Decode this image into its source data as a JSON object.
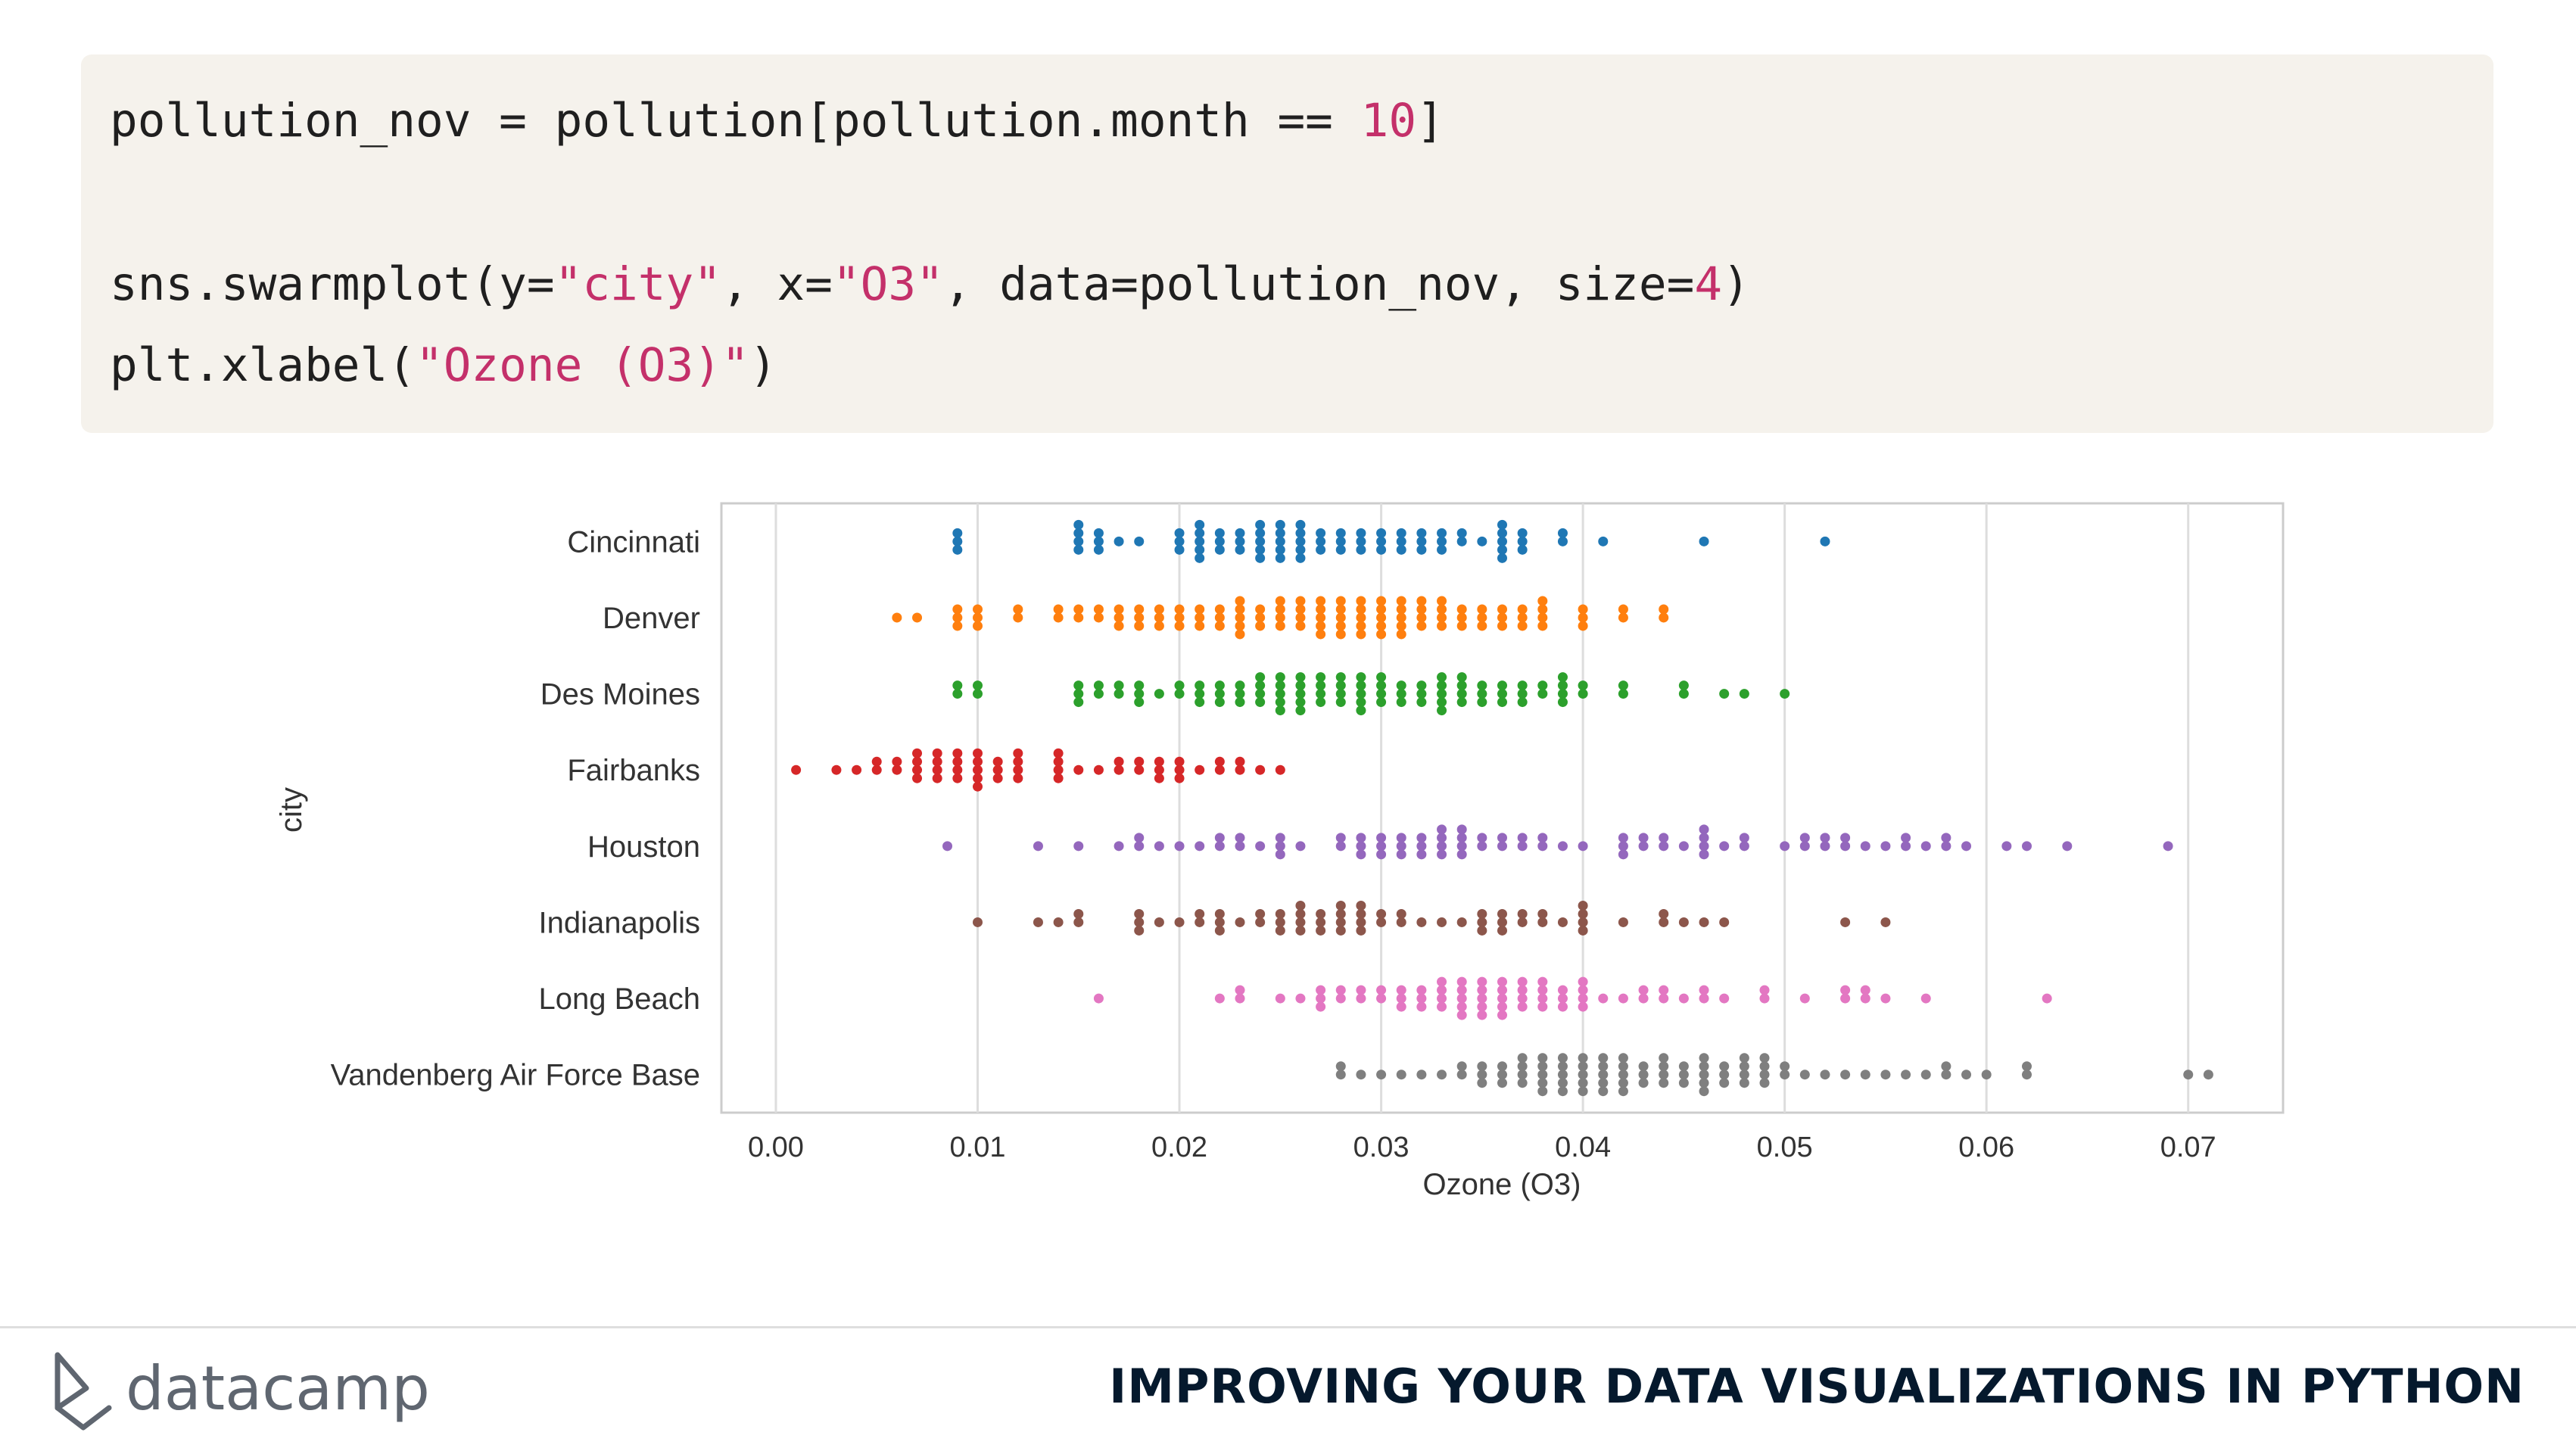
{
  "code": {
    "lines": [
      [
        {
          "t": "pollution_nov = pollution[pollution.month == ",
          "c": "plain"
        },
        {
          "t": "10",
          "c": "num"
        },
        {
          "t": "]",
          "c": "plain"
        }
      ],
      [],
      [
        {
          "t": "sns.swarmplot(y=",
          "c": "plain"
        },
        {
          "t": "\"city\"",
          "c": "str"
        },
        {
          "t": ", x=",
          "c": "plain"
        },
        {
          "t": "\"O3\"",
          "c": "str"
        },
        {
          "t": ", data=pollution_nov, size=",
          "c": "plain"
        },
        {
          "t": "4",
          "c": "num"
        },
        {
          "t": ")",
          "c": "plain"
        }
      ],
      [
        {
          "t": "plt.xlabel(",
          "c": "plain"
        },
        {
          "t": "\"Ozone (O3)\"",
          "c": "str"
        },
        {
          "t": ")",
          "c": "plain"
        }
      ]
    ]
  },
  "chart_data": {
    "type": "scatter",
    "subtype": "swarm",
    "title": "",
    "xlabel": "Ozone (O3)",
    "ylabel": "city",
    "xlim": [
      -0.0027,
      0.0747
    ],
    "x_ticks": [
      0.0,
      0.01,
      0.02,
      0.03,
      0.04,
      0.05,
      0.06,
      0.07
    ],
    "x_tick_labels": [
      "0.00",
      "0.01",
      "0.02",
      "0.03",
      "0.04",
      "0.05",
      "0.06",
      "0.07"
    ],
    "grid": "vertical",
    "categories": [
      "Cincinnati",
      "Denver",
      "Des Moines",
      "Fairbanks",
      "Houston",
      "Indianapolis",
      "Long Beach",
      "Vandenberg Air Force Base"
    ],
    "series": [
      {
        "color": "#1f77b4",
        "x": [
          0.009,
          0.009,
          0.009,
          0.015,
          0.015,
          0.015,
          0.015,
          0.016,
          0.016,
          0.016,
          0.017,
          0.018,
          0.02,
          0.02,
          0.02,
          0.021,
          0.021,
          0.021,
          0.021,
          0.021,
          0.022,
          0.022,
          0.022,
          0.023,
          0.023,
          0.023,
          0.024,
          0.024,
          0.024,
          0.024,
          0.024,
          0.025,
          0.025,
          0.025,
          0.025,
          0.025,
          0.026,
          0.026,
          0.026,
          0.026,
          0.026,
          0.027,
          0.027,
          0.027,
          0.028,
          0.028,
          0.028,
          0.029,
          0.029,
          0.029,
          0.03,
          0.03,
          0.03,
          0.031,
          0.031,
          0.031,
          0.032,
          0.032,
          0.032,
          0.033,
          0.033,
          0.033,
          0.034,
          0.034,
          0.035,
          0.036,
          0.036,
          0.036,
          0.036,
          0.036,
          0.037,
          0.037,
          0.037,
          0.039,
          0.039,
          0.041,
          0.046,
          0.052
        ]
      },
      {
        "color": "#ff7f0e",
        "x": [
          0.006,
          0.007,
          0.009,
          0.009,
          0.009,
          0.01,
          0.01,
          0.01,
          0.012,
          0.012,
          0.014,
          0.014,
          0.015,
          0.015,
          0.016,
          0.016,
          0.017,
          0.017,
          0.017,
          0.018,
          0.018,
          0.018,
          0.019,
          0.019,
          0.019,
          0.02,
          0.02,
          0.02,
          0.021,
          0.021,
          0.021,
          0.022,
          0.022,
          0.022,
          0.023,
          0.023,
          0.023,
          0.023,
          0.023,
          0.024,
          0.024,
          0.024,
          0.025,
          0.025,
          0.025,
          0.025,
          0.026,
          0.026,
          0.026,
          0.026,
          0.027,
          0.027,
          0.027,
          0.027,
          0.027,
          0.028,
          0.028,
          0.028,
          0.028,
          0.028,
          0.029,
          0.029,
          0.029,
          0.029,
          0.029,
          0.03,
          0.03,
          0.03,
          0.03,
          0.03,
          0.031,
          0.031,
          0.031,
          0.031,
          0.031,
          0.032,
          0.032,
          0.032,
          0.032,
          0.033,
          0.033,
          0.033,
          0.033,
          0.034,
          0.034,
          0.034,
          0.035,
          0.035,
          0.035,
          0.036,
          0.036,
          0.036,
          0.037,
          0.037,
          0.037,
          0.038,
          0.038,
          0.038,
          0.038,
          0.04,
          0.04,
          0.04,
          0.042,
          0.042,
          0.044,
          0.044
        ]
      },
      {
        "color": "#2ca02c",
        "x": [
          0.009,
          0.009,
          0.01,
          0.01,
          0.015,
          0.015,
          0.015,
          0.016,
          0.016,
          0.017,
          0.017,
          0.018,
          0.018,
          0.018,
          0.019,
          0.02,
          0.02,
          0.021,
          0.021,
          0.021,
          0.022,
          0.022,
          0.022,
          0.023,
          0.023,
          0.023,
          0.024,
          0.024,
          0.024,
          0.024,
          0.025,
          0.025,
          0.025,
          0.025,
          0.025,
          0.026,
          0.026,
          0.026,
          0.026,
          0.026,
          0.027,
          0.027,
          0.027,
          0.027,
          0.028,
          0.028,
          0.028,
          0.028,
          0.029,
          0.029,
          0.029,
          0.029,
          0.029,
          0.03,
          0.03,
          0.03,
          0.03,
          0.031,
          0.031,
          0.031,
          0.032,
          0.032,
          0.032,
          0.033,
          0.033,
          0.033,
          0.033,
          0.033,
          0.034,
          0.034,
          0.034,
          0.034,
          0.035,
          0.035,
          0.035,
          0.036,
          0.036,
          0.036,
          0.037,
          0.037,
          0.037,
          0.038,
          0.038,
          0.039,
          0.039,
          0.039,
          0.039,
          0.04,
          0.04,
          0.042,
          0.042,
          0.045,
          0.045,
          0.047,
          0.048,
          0.05
        ]
      },
      {
        "color": "#d62728",
        "x": [
          0.001,
          0.003,
          0.004,
          0.005,
          0.005,
          0.006,
          0.006,
          0.007,
          0.007,
          0.007,
          0.007,
          0.008,
          0.008,
          0.008,
          0.008,
          0.009,
          0.009,
          0.009,
          0.009,
          0.01,
          0.01,
          0.01,
          0.01,
          0.01,
          0.011,
          0.011,
          0.011,
          0.012,
          0.012,
          0.012,
          0.012,
          0.014,
          0.014,
          0.014,
          0.014,
          0.015,
          0.016,
          0.017,
          0.017,
          0.018,
          0.018,
          0.019,
          0.019,
          0.019,
          0.02,
          0.02,
          0.02,
          0.021,
          0.022,
          0.022,
          0.023,
          0.023,
          0.024,
          0.025
        ]
      },
      {
        "color": "#9467bd",
        "x": [
          0.0085,
          0.013,
          0.015,
          0.017,
          0.018,
          0.018,
          0.019,
          0.02,
          0.021,
          0.022,
          0.022,
          0.023,
          0.023,
          0.024,
          0.025,
          0.025,
          0.025,
          0.026,
          0.028,
          0.028,
          0.029,
          0.029,
          0.029,
          0.03,
          0.03,
          0.03,
          0.031,
          0.031,
          0.031,
          0.032,
          0.032,
          0.032,
          0.033,
          0.033,
          0.033,
          0.033,
          0.034,
          0.034,
          0.034,
          0.034,
          0.035,
          0.035,
          0.036,
          0.036,
          0.037,
          0.037,
          0.038,
          0.038,
          0.039,
          0.04,
          0.042,
          0.042,
          0.042,
          0.043,
          0.043,
          0.044,
          0.044,
          0.045,
          0.046,
          0.046,
          0.046,
          0.046,
          0.047,
          0.048,
          0.048,
          0.05,
          0.051,
          0.051,
          0.052,
          0.052,
          0.053,
          0.053,
          0.054,
          0.055,
          0.056,
          0.056,
          0.057,
          0.058,
          0.058,
          0.059,
          0.061,
          0.062,
          0.064,
          0.069
        ]
      },
      {
        "color": "#8c564b",
        "x": [
          0.01,
          0.013,
          0.014,
          0.015,
          0.015,
          0.018,
          0.018,
          0.018,
          0.019,
          0.02,
          0.021,
          0.021,
          0.022,
          0.022,
          0.022,
          0.023,
          0.024,
          0.024,
          0.025,
          0.025,
          0.025,
          0.026,
          0.026,
          0.026,
          0.026,
          0.027,
          0.027,
          0.027,
          0.028,
          0.028,
          0.028,
          0.028,
          0.029,
          0.029,
          0.029,
          0.029,
          0.03,
          0.03,
          0.031,
          0.031,
          0.032,
          0.033,
          0.034,
          0.035,
          0.035,
          0.035,
          0.036,
          0.036,
          0.036,
          0.037,
          0.037,
          0.038,
          0.038,
          0.039,
          0.04,
          0.04,
          0.04,
          0.04,
          0.042,
          0.044,
          0.044,
          0.045,
          0.046,
          0.047,
          0.053,
          0.055
        ]
      },
      {
        "color": "#e377c2",
        "x": [
          0.016,
          0.022,
          0.023,
          0.023,
          0.025,
          0.026,
          0.027,
          0.027,
          0.027,
          0.028,
          0.028,
          0.029,
          0.029,
          0.03,
          0.03,
          0.031,
          0.031,
          0.031,
          0.032,
          0.032,
          0.032,
          0.033,
          0.033,
          0.033,
          0.033,
          0.034,
          0.034,
          0.034,
          0.034,
          0.034,
          0.035,
          0.035,
          0.035,
          0.035,
          0.035,
          0.036,
          0.036,
          0.036,
          0.036,
          0.036,
          0.037,
          0.037,
          0.037,
          0.037,
          0.038,
          0.038,
          0.038,
          0.038,
          0.039,
          0.039,
          0.039,
          0.04,
          0.04,
          0.04,
          0.04,
          0.041,
          0.042,
          0.043,
          0.043,
          0.044,
          0.044,
          0.045,
          0.046,
          0.046,
          0.047,
          0.049,
          0.049,
          0.051,
          0.053,
          0.053,
          0.054,
          0.054,
          0.055,
          0.057,
          0.063
        ]
      },
      {
        "color": "#7f7f7f",
        "x": [
          0.028,
          0.028,
          0.029,
          0.03,
          0.031,
          0.032,
          0.033,
          0.034,
          0.034,
          0.035,
          0.035,
          0.035,
          0.036,
          0.036,
          0.036,
          0.037,
          0.037,
          0.037,
          0.037,
          0.038,
          0.038,
          0.038,
          0.038,
          0.038,
          0.039,
          0.039,
          0.039,
          0.039,
          0.039,
          0.04,
          0.04,
          0.04,
          0.04,
          0.04,
          0.041,
          0.041,
          0.041,
          0.041,
          0.041,
          0.042,
          0.042,
          0.042,
          0.042,
          0.042,
          0.043,
          0.043,
          0.043,
          0.044,
          0.044,
          0.044,
          0.044,
          0.045,
          0.045,
          0.045,
          0.046,
          0.046,
          0.046,
          0.046,
          0.046,
          0.047,
          0.047,
          0.047,
          0.048,
          0.048,
          0.048,
          0.048,
          0.049,
          0.049,
          0.049,
          0.049,
          0.05,
          0.05,
          0.051,
          0.052,
          0.053,
          0.054,
          0.055,
          0.056,
          0.057,
          0.058,
          0.058,
          0.059,
          0.06,
          0.062,
          0.062,
          0.07,
          0.071
        ]
      }
    ]
  },
  "footer": {
    "brand": "datacamp",
    "course_title": "IMPROVING YOUR DATA VISUALIZATIONS IN PYTHON"
  }
}
